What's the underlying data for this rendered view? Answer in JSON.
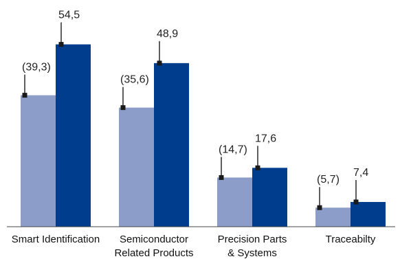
{
  "chart_data": {
    "type": "bar",
    "title": "",
    "xlabel": "",
    "ylabel": "",
    "ylim": [
      0,
      60
    ],
    "grid": false,
    "legend": "none",
    "categories": [
      [
        "Smart Identification"
      ],
      [
        "Semiconductor",
        "Related Products"
      ],
      [
        "Precision Parts",
        "& Systems"
      ],
      [
        "Traceabilty"
      ]
    ],
    "series": [
      {
        "values": [
          39.3,
          35.6,
          14.7,
          5.7
        ],
        "labels": [
          "(39,3)",
          "(35,6)",
          "(14,7)",
          "(5,7)"
        ],
        "color": "#8b9dc8"
      },
      {
        "values": [
          54.5,
          48.9,
          17.6,
          7.4
        ],
        "labels": [
          "54,5",
          "48,9",
          "17,6",
          "7,4"
        ],
        "color": "#003d8c"
      }
    ],
    "marker_color": "#1a1a1a",
    "axis_color": "#444444"
  }
}
